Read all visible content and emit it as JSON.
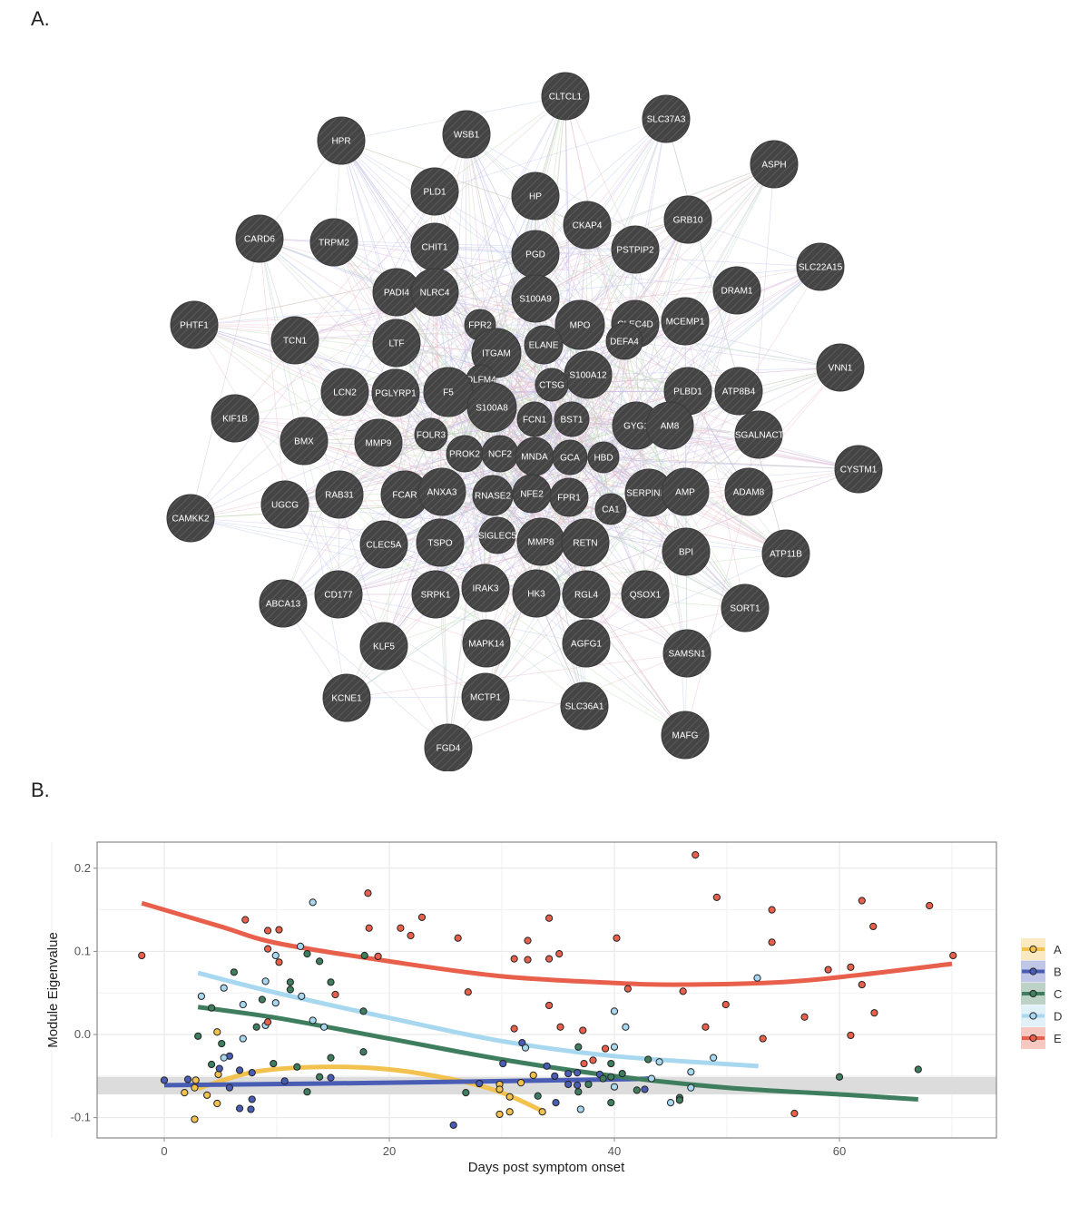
{
  "panel_a_label": "A.",
  "panel_b_label": "B.",
  "network": {
    "node_color": "#454545",
    "edge_colors": [
      "#c9b6e4",
      "#b7dcb0",
      "#e9b7c4",
      "#b9c6ea"
    ],
    "nodes": [
      "CLTCL1",
      "SLC37A3",
      "WSB1",
      "HPR",
      "ASPH",
      "PLD1",
      "HP",
      "CKAP4",
      "GRB10",
      "CARD6",
      "TRPM2",
      "CHIT1",
      "PGD",
      "PSTPIP2",
      "SLC22A15",
      "DRAM1",
      "PADI4",
      "NLRC4",
      "S100A9",
      "PHTF1",
      "FPR2",
      "MPO",
      "CLEC4D",
      "MCEMP1",
      "TCN1",
      "LTF",
      "ITGAM",
      "ELANE",
      "DEFA4",
      "VNN1",
      "OLFM4",
      "S100A12",
      "CTSG",
      "PLBD1",
      "ATP8B4",
      "LCN2",
      "PGLYRP1",
      "F5",
      "S100A8",
      "KIF1B",
      "FCN1",
      "BST1",
      "GYG1",
      "AM8",
      "CSGALNACT2",
      "BMX",
      "FOLR3",
      "MMP9",
      "PROK2",
      "NCF2",
      "MNDA",
      "GCA",
      "HBD",
      "CYSTM1",
      "RAB31",
      "FCAR",
      "ANXA3",
      "RNASE2",
      "NFE2",
      "FPR1",
      "CA1",
      "SERPINB1",
      "AMP",
      "ADAM8",
      "CAMKK2",
      "UGCG",
      "SIGLEC5",
      "CLEC5A",
      "TSPO",
      "MMP8",
      "RETN",
      "BPI",
      "ATP11B",
      "CD177",
      "ABCA13",
      "SRPK1",
      "IRAK3",
      "HK3",
      "RGL4",
      "QSOX1",
      "SORT1",
      "KLF5",
      "MAPK14",
      "AGFG1",
      "SAMSN1",
      "KCNE1",
      "MCTP1",
      "SLC36A1",
      "MAFG",
      "FGD4"
    ]
  },
  "chart_data": {
    "type": "scatter",
    "xlabel": "Days post symptom onset",
    "ylabel": "Module Eigenvalue",
    "xlim": [
      -6,
      74
    ],
    "ylim": [
      -0.125,
      0.23
    ],
    "x_ticks": [
      0,
      20,
      40,
      60
    ],
    "x_tick_labels": [
      "0",
      "20",
      "40",
      "60"
    ],
    "y_ticks": [
      0.2,
      0.1,
      0.0,
      -0.1
    ],
    "y_tick_labels": [
      "0.2",
      "0.1",
      "0.0",
      "-0.1"
    ],
    "grid": true,
    "legend_position": "right",
    "reference_band": {
      "ymin": -0.072,
      "ymax": -0.051,
      "color": "#dcdcdc"
    },
    "series": [
      {
        "name": "A",
        "color": "#f2c14e",
        "points": [
          [
            4.7,
            0.003
          ],
          [
            2.8,
            -0.055
          ],
          [
            2.7,
            -0.064
          ],
          [
            1.8,
            -0.07
          ],
          [
            3.8,
            -0.073
          ],
          [
            4.7,
            -0.083
          ],
          [
            2.7,
            -0.102
          ],
          [
            4.8,
            -0.048
          ],
          [
            29.8,
            -0.06
          ],
          [
            29.8,
            -0.066
          ],
          [
            30.7,
            -0.075
          ],
          [
            30.7,
            -0.093
          ],
          [
            29.8,
            -0.096
          ],
          [
            31.7,
            -0.058
          ],
          [
            32.8,
            -0.049
          ],
          [
            33.6,
            -0.093
          ]
        ],
        "fit": [
          [
            3,
            -0.065
          ],
          [
            8,
            -0.045
          ],
          [
            14,
            -0.039
          ],
          [
            20,
            -0.042
          ],
          [
            26,
            -0.055
          ],
          [
            30,
            -0.07
          ],
          [
            33.6,
            -0.092
          ]
        ]
      },
      {
        "name": "B",
        "color": "#4a5db5",
        "points": [
          [
            0,
            -0.055
          ],
          [
            2.1,
            -0.054
          ],
          [
            5.8,
            -0.026
          ],
          [
            4.9,
            -0.041
          ],
          [
            5.8,
            -0.064
          ],
          [
            6.7,
            -0.043
          ],
          [
            7.8,
            -0.046
          ],
          [
            7.8,
            -0.078
          ],
          [
            6.7,
            -0.089
          ],
          [
            7.7,
            -0.09
          ],
          [
            10.7,
            -0.056
          ],
          [
            14.8,
            -0.052
          ],
          [
            25.7,
            -0.109
          ],
          [
            28,
            -0.059
          ],
          [
            30.1,
            -0.035
          ],
          [
            31.8,
            -0.01
          ],
          [
            34,
            -0.038
          ],
          [
            34.7,
            -0.05
          ],
          [
            35.9,
            -0.047
          ],
          [
            36.7,
            -0.046
          ],
          [
            38.7,
            -0.048
          ],
          [
            35.9,
            -0.06
          ],
          [
            36.7,
            -0.061
          ],
          [
            42.7,
            -0.066
          ],
          [
            34.8,
            -0.082
          ]
        ],
        "fit": [
          [
            0,
            -0.061
          ],
          [
            20,
            -0.058
          ],
          [
            40,
            -0.054
          ],
          [
            43,
            -0.053
          ]
        ]
      },
      {
        "name": "C",
        "color": "#3e7d5e",
        "points": [
          [
            6.2,
            0.075
          ],
          [
            11.2,
            0.063
          ],
          [
            11.2,
            0.054
          ],
          [
            12.7,
            0.097
          ],
          [
            13.8,
            0.088
          ],
          [
            14.8,
            0.063
          ],
          [
            8.7,
            0.042
          ],
          [
            4.2,
            0.032
          ],
          [
            8.2,
            0.009
          ],
          [
            17.8,
            0.095
          ],
          [
            17.7,
            0.028
          ],
          [
            3,
            -0.002
          ],
          [
            5.1,
            -0.011
          ],
          [
            17.7,
            -0.021
          ],
          [
            14.8,
            -0.028
          ],
          [
            4.2,
            -0.036
          ],
          [
            9.7,
            -0.035
          ],
          [
            11.8,
            -0.039
          ],
          [
            13.8,
            -0.051
          ],
          [
            12.7,
            -0.069
          ],
          [
            26.8,
            -0.07
          ],
          [
            33.2,
            -0.074
          ],
          [
            36.8,
            -0.015
          ],
          [
            39.7,
            -0.035
          ],
          [
            43,
            -0.03
          ],
          [
            40.7,
            -0.047
          ],
          [
            37.7,
            -0.06
          ],
          [
            36.8,
            -0.069
          ],
          [
            39.7,
            -0.051
          ],
          [
            39,
            -0.053
          ],
          [
            42,
            -0.067
          ],
          [
            45.8,
            -0.076
          ],
          [
            45.8,
            -0.079
          ],
          [
            39.7,
            -0.082
          ],
          [
            60,
            -0.051
          ],
          [
            67,
            -0.042
          ]
        ],
        "fit": [
          [
            3,
            0.033
          ],
          [
            10,
            0.02
          ],
          [
            20,
            -0.005
          ],
          [
            30,
            -0.03
          ],
          [
            40,
            -0.05
          ],
          [
            50,
            -0.064
          ],
          [
            60,
            -0.072
          ],
          [
            67,
            -0.078
          ]
        ]
      },
      {
        "name": "D",
        "color": "#a8d8ef",
        "points": [
          [
            13.2,
            0.159
          ],
          [
            3.3,
            0.046
          ],
          [
            5.3,
            0.056
          ],
          [
            7,
            0.036
          ],
          [
            9,
            0.064
          ],
          [
            9.9,
            0.095
          ],
          [
            9.9,
            0.038
          ],
          [
            12.1,
            0.106
          ],
          [
            12.2,
            0.046
          ],
          [
            13.2,
            0.017
          ],
          [
            14.2,
            0.009
          ],
          [
            9,
            0.011
          ],
          [
            7,
            -0.005
          ],
          [
            5.3,
            -0.028
          ],
          [
            32.1,
            -0.016
          ],
          [
            40,
            0.028
          ],
          [
            41,
            0.009
          ],
          [
            40,
            -0.015
          ],
          [
            44,
            -0.033
          ],
          [
            48.8,
            -0.028
          ],
          [
            52.7,
            0.068
          ],
          [
            46.8,
            -0.045
          ],
          [
            43.3,
            -0.053
          ],
          [
            40,
            -0.063
          ],
          [
            46.8,
            -0.064
          ],
          [
            45,
            -0.082
          ],
          [
            37,
            -0.09
          ]
        ],
        "fit": [
          [
            3,
            0.074
          ],
          [
            10,
            0.05
          ],
          [
            20,
            0.02
          ],
          [
            30,
            -0.008
          ],
          [
            40,
            -0.026
          ],
          [
            52.8,
            -0.038
          ]
        ]
      },
      {
        "name": "E",
        "color": "#e8604c",
        "points": [
          [
            -2,
            0.095
          ],
          [
            7.2,
            0.138
          ],
          [
            9.2,
            0.125
          ],
          [
            10.2,
            0.126
          ],
          [
            9.2,
            0.103
          ],
          [
            10.2,
            0.087
          ],
          [
            9.2,
            0.015
          ],
          [
            18.1,
            0.17
          ],
          [
            18.2,
            0.128
          ],
          [
            19,
            0.094
          ],
          [
            21,
            0.128
          ],
          [
            21.9,
            0.119
          ],
          [
            22.9,
            0.141
          ],
          [
            26.1,
            0.116
          ],
          [
            27,
            0.051
          ],
          [
            31.1,
            0.007
          ],
          [
            31.1,
            0.091
          ],
          [
            32.3,
            0.09
          ],
          [
            32.3,
            0.113
          ],
          [
            15.2,
            0.048
          ],
          [
            47.2,
            0.216
          ],
          [
            49.1,
            0.165
          ],
          [
            54,
            0.15
          ],
          [
            54,
            0.111
          ],
          [
            62,
            0.161
          ],
          [
            68,
            0.155
          ],
          [
            63,
            0.13
          ],
          [
            70.1,
            0.095
          ],
          [
            59,
            0.078
          ],
          [
            61,
            0.081
          ],
          [
            62,
            0.06
          ],
          [
            41.2,
            0.055
          ],
          [
            46.1,
            0.052
          ],
          [
            40.2,
            0.116
          ],
          [
            34.2,
            0.14
          ],
          [
            34.2,
            0.091
          ],
          [
            35.1,
            0.097
          ],
          [
            49.9,
            0.036
          ],
          [
            34.2,
            0.035
          ],
          [
            35.2,
            0.009
          ],
          [
            37.2,
            0.005
          ],
          [
            48.1,
            0.009
          ],
          [
            56.9,
            0.021
          ],
          [
            63.1,
            0.026
          ],
          [
            61,
            -0.001
          ],
          [
            53.2,
            -0.005
          ],
          [
            39.2,
            -0.017
          ],
          [
            38.1,
            -0.031
          ],
          [
            37.3,
            -0.035
          ],
          [
            56,
            -0.095
          ]
        ],
        "fit": [
          [
            -2,
            0.158
          ],
          [
            5,
            0.13
          ],
          [
            10,
            0.11
          ],
          [
            20,
            0.088
          ],
          [
            30,
            0.07
          ],
          [
            40,
            0.062
          ],
          [
            46,
            0.06
          ],
          [
            55,
            0.063
          ],
          [
            62,
            0.072
          ],
          [
            70,
            0.085
          ]
        ]
      }
    ]
  }
}
